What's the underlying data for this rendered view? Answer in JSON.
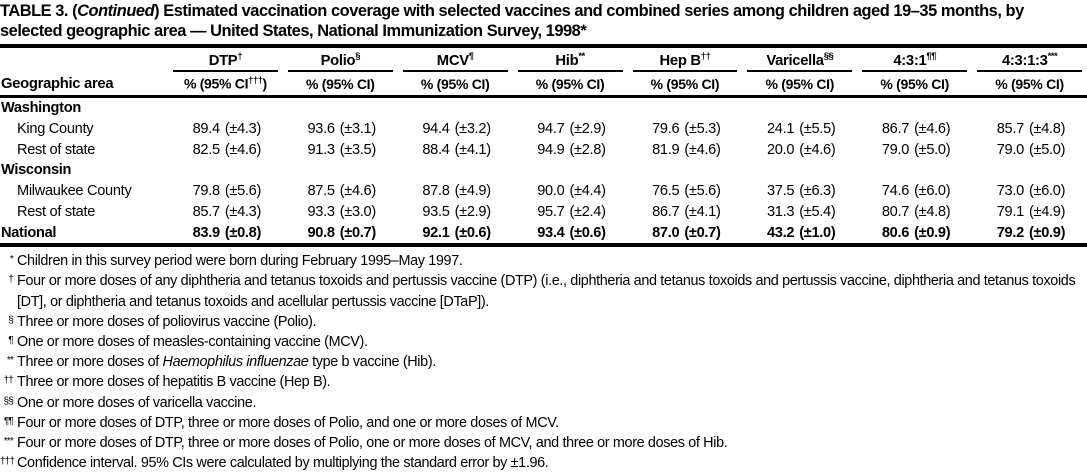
{
  "title": {
    "pre": "TABLE 3. (",
    "italic": "Continued",
    "post": ") Estimated vaccination coverage with selected vaccines and combined series among children aged 19–35 months, by selected geographic area — United States, National Immunization Survey, 1998*"
  },
  "header": {
    "geo_label": "Geographic area",
    "columns": [
      {
        "name": "DTP",
        "sup": "†",
        "ci_pre": "% (95% CI",
        "ci_sup": "†††",
        "ci_post": ")"
      },
      {
        "name": "Polio",
        "sup": "§",
        "ci_pre": "% (95% CI)"
      },
      {
        "name": "MCV",
        "sup": "¶",
        "ci_pre": "% (95% CI)"
      },
      {
        "name": "Hib",
        "sup": "**",
        "ci_pre": "% (95% CI)"
      },
      {
        "name": "Hep B",
        "sup": "††",
        "ci_pre": "% (95% CI)"
      },
      {
        "name": "Varicella",
        "sup": "§§",
        "ci_pre": "% (95% CI)"
      },
      {
        "name": "4:3:1",
        "sup": "¶¶",
        "ci_pre": "% (95% CI)"
      },
      {
        "name": "4:3:1:3",
        "sup": "***",
        "ci_pre": "% (95% CI)"
      }
    ]
  },
  "table": {
    "washington": {
      "label": "Washington"
    },
    "king": {
      "label": "King County",
      "cells": [
        {
          "pct": "89.4",
          "ci": "(±4.3)"
        },
        {
          "pct": "93.6",
          "ci": "(±3.1)"
        },
        {
          "pct": "94.4",
          "ci": "(±3.2)"
        },
        {
          "pct": "94.7",
          "ci": "(±2.9)"
        },
        {
          "pct": "79.6",
          "ci": "(±5.3)"
        },
        {
          "pct": "24.1",
          "ci": "(±5.5)"
        },
        {
          "pct": "86.7",
          "ci": "(±4.6)"
        },
        {
          "pct": "85.7",
          "ci": "(±4.8)"
        }
      ]
    },
    "wa_rest": {
      "label": "Rest of state",
      "cells": [
        {
          "pct": "82.5",
          "ci": "(±4.6)"
        },
        {
          "pct": "91.3",
          "ci": "(±3.5)"
        },
        {
          "pct": "88.4",
          "ci": "(±4.1)"
        },
        {
          "pct": "94.9",
          "ci": "(±2.8)"
        },
        {
          "pct": "81.9",
          "ci": "(±4.6)"
        },
        {
          "pct": "20.0",
          "ci": "(±4.6)"
        },
        {
          "pct": "79.0",
          "ci": "(±5.0)"
        },
        {
          "pct": "79.0",
          "ci": "(±5.0)"
        }
      ]
    },
    "wisconsin": {
      "label": "Wisconsin"
    },
    "milwaukee": {
      "label": "Milwaukee County",
      "cells": [
        {
          "pct": "79.8",
          "ci": "(±5.6)"
        },
        {
          "pct": "87.5",
          "ci": "(±4.6)"
        },
        {
          "pct": "87.8",
          "ci": "(±4.9)"
        },
        {
          "pct": "90.0",
          "ci": "(±4.4)"
        },
        {
          "pct": "76.5",
          "ci": "(±5.6)"
        },
        {
          "pct": "37.5",
          "ci": "(±6.3)"
        },
        {
          "pct": "74.6",
          "ci": "(±6.0)"
        },
        {
          "pct": "73.0",
          "ci": "(±6.0)"
        }
      ]
    },
    "wi_rest": {
      "label": "Rest of state",
      "cells": [
        {
          "pct": "85.7",
          "ci": "(±4.3)"
        },
        {
          "pct": "93.3",
          "ci": "(±3.0)"
        },
        {
          "pct": "93.5",
          "ci": "(±2.9)"
        },
        {
          "pct": "95.7",
          "ci": "(±2.4)"
        },
        {
          "pct": "86.7",
          "ci": "(±4.1)"
        },
        {
          "pct": "31.3",
          "ci": "(±5.4)"
        },
        {
          "pct": "80.7",
          "ci": "(±4.8)"
        },
        {
          "pct": "79.1",
          "ci": "(±4.9)"
        }
      ]
    },
    "national": {
      "label": "National",
      "cells": [
        {
          "pct": "83.9",
          "ci": "(±0.8)"
        },
        {
          "pct": "90.8",
          "ci": "(±0.7)"
        },
        {
          "pct": "92.1",
          "ci": "(±0.6)"
        },
        {
          "pct": "93.4",
          "ci": "(±0.6)"
        },
        {
          "pct": "87.0",
          "ci": "(±0.7)"
        },
        {
          "pct": "43.2",
          "ci": "(±1.0)"
        },
        {
          "pct": "80.6",
          "ci": "(±0.9)"
        },
        {
          "pct": "79.2",
          "ci": "(±0.9)"
        }
      ]
    }
  },
  "footnotes": [
    {
      "marker": "*",
      "text": "Children in this survey period were born during February 1995–May 1997."
    },
    {
      "marker": "†",
      "text": "Four or more doses of any diphtheria and tetanus toxoids and pertussis vaccine (DTP) (i.e., diphtheria and tetanus toxoids and pertussis vaccine, diphtheria and tetanus toxoids [DT], or diphtheria and tetanus toxoids and acellular pertussis vaccine [DTaP])."
    },
    {
      "marker": "§",
      "text": "Three or more doses of poliovirus vaccine (Polio)."
    },
    {
      "marker": "¶",
      "text": "One or more doses of measles-containing vaccine (MCV)."
    },
    {
      "marker": "**",
      "text": "Three or more doses of ",
      "italic": "Haemophilus influenzae",
      "post": " type b vaccine (Hib)."
    },
    {
      "marker": "††",
      "text": "Three or more doses of hepatitis B vaccine (Hep B)."
    },
    {
      "marker": "§§",
      "text": "One or more doses of varicella vaccine."
    },
    {
      "marker": "¶¶",
      "text": "Four or more doses of DTP, three or more doses of Polio, and one or more doses of MCV."
    },
    {
      "marker": "***",
      "text": "Four or more doses of DTP, three or more doses of Polio, one or more doses of MCV, and three or more doses of Hib."
    },
    {
      "marker": "†††",
      "text": "Confidence interval. 95% CIs were calculated by multiplying the standard error by ±1.96."
    }
  ]
}
